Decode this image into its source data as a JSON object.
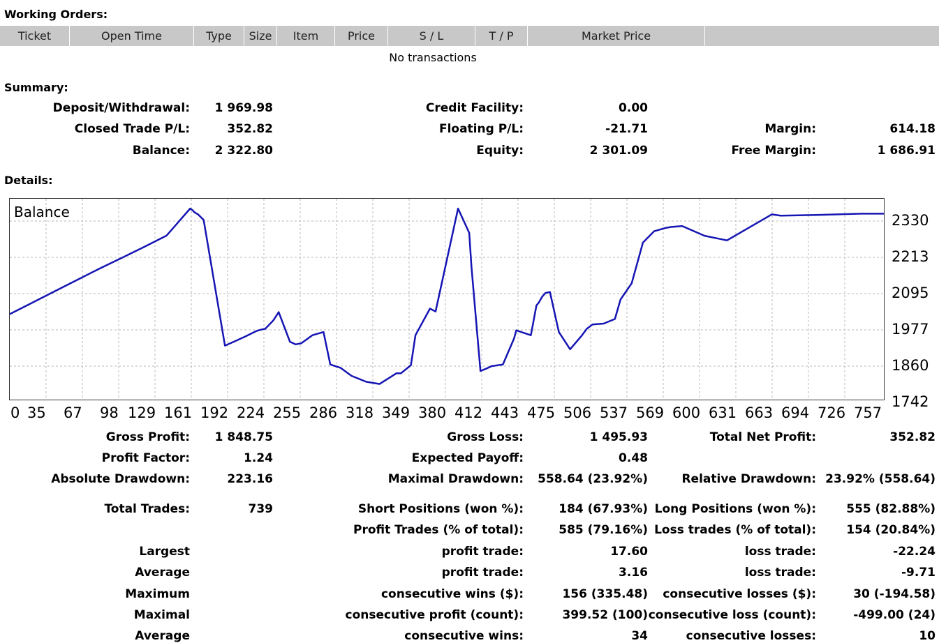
{
  "sections": {
    "working_orders": "Working Orders:",
    "summary": "Summary:",
    "details": "Details:"
  },
  "orders": {
    "columns": [
      "Ticket",
      "Open Time",
      "Type",
      "Size",
      "Item",
      "Price",
      "S / L",
      "T / P",
      "Market Price",
      ""
    ],
    "empty_text": "No transactions"
  },
  "summary": {
    "deposit_label": "Deposit/Withdrawal:",
    "deposit_value": "1 969.98",
    "credit_label": "Credit Facility:",
    "credit_value": "0.00",
    "closed_label": "Closed Trade P/L:",
    "closed_value": "352.82",
    "floating_label": "Floating P/L:",
    "floating_value": "-21.71",
    "margin_label": "Margin:",
    "margin_value": "614.18",
    "balance_label": "Balance:",
    "balance_value": "2 322.80",
    "equity_label": "Equity:",
    "equity_value": "2 301.09",
    "free_margin_label": "Free Margin:",
    "free_margin_value": "1 686.91"
  },
  "details": {
    "rows": [
      [
        "Gross Profit:",
        "1 848.75",
        "Gross Loss:",
        "1 495.93",
        "Total Net Profit:",
        "352.82"
      ],
      [
        "Profit Factor:",
        "1.24",
        "Expected Payoff:",
        "0.48",
        "",
        ""
      ],
      [
        "Absolute Drawdown:",
        "223.16",
        "Maximal Drawdown:",
        "558.64 (23.92%)",
        "Relative Drawdown:",
        "23.92% (558.64)"
      ],
      [
        "Total Trades:",
        "739",
        "Short Positions (won %):",
        "184 (67.93%)",
        "Long Positions (won %):",
        "555 (82.88%)"
      ],
      [
        "",
        "",
        "Profit Trades (% of total):",
        "585 (79.16%)",
        "Loss trades (% of total):",
        "154 (20.84%)"
      ],
      [
        "Largest",
        "",
        "profit trade:",
        "17.60",
        "loss trade:",
        "-22.24"
      ],
      [
        "Average",
        "",
        "profit trade:",
        "3.16",
        "loss trade:",
        "-9.71"
      ],
      [
        "Maximum",
        "",
        "consecutive wins ($):",
        "156 (335.48)",
        "consecutive losses ($):",
        "30 (-194.58)"
      ],
      [
        "Maximal",
        "",
        "consecutive profit (count):",
        "399.52 (100)",
        "consecutive loss (count):",
        "-499.00 (24)"
      ],
      [
        "Average",
        "",
        "consecutive wins:",
        "34",
        "consecutive losses:",
        "10"
      ]
    ]
  },
  "colors": {
    "line": "#1515b4",
    "grid": "#b8b8b8",
    "header_bg": "#c8c8c8"
  },
  "chart_data": {
    "type": "line",
    "title": "Balance",
    "x_ticks": [
      "0",
      "35",
      "67",
      "98",
      "129",
      "161",
      "192",
      "224",
      "255",
      "286",
      "318",
      "349",
      "380",
      "412",
      "443",
      "475",
      "506",
      "537",
      "569",
      "600",
      "631",
      "663",
      "694",
      "726",
      "757"
    ],
    "y_ticks": [
      "2330",
      "2213",
      "2095",
      "1977",
      "1860",
      "1742"
    ],
    "xlim": [
      0,
      780
    ],
    "ylim": [
      1742,
      2360
    ],
    "grid": true,
    "series": [
      {
        "x": [
          0,
          20,
          40,
          60,
          80,
          100,
          120,
          140,
          161,
          163,
          165,
          168,
          170,
          173,
          192,
          200,
          210,
          220,
          224,
          228,
          235,
          240,
          250,
          255,
          260,
          270,
          280,
          286,
          295,
          305,
          318,
          330,
          345,
          349,
          358,
          362,
          375,
          380,
          400,
          410,
          412,
          420,
          425,
          430,
          440,
          450,
          452,
          465,
          470,
          472,
          475,
          478,
          482,
          490,
          500,
          510,
          515,
          520,
          530,
          540,
          545,
          555,
          565,
          575,
          585,
          590,
          600,
          620,
          640,
          680,
          688,
          720,
          760,
          780
        ],
        "y": [
          2005,
          2040,
          2075,
          2110,
          2145,
          2178,
          2212,
          2247,
          2330,
          2325,
          2318,
          2312,
          2305,
          2295,
          1908,
          1920,
          1936,
          1953,
          1957,
          1960,
          1985,
          2011,
          1920,
          1912,
          1915,
          1940,
          1950,
          1850,
          1840,
          1815,
          1797,
          1790,
          1823,
          1823,
          1848,
          1940,
          2022,
          2013,
          2330,
          2255,
          2151,
          1830,
          1837,
          1845,
          1850,
          1930,
          1955,
          1940,
          2032,
          2040,
          2058,
          2070,
          2073,
          1950,
          1897,
          1937,
          1960,
          1973,
          1976,
          1990,
          2050,
          2100,
          2225,
          2260,
          2270,
          2273,
          2276,
          2246,
          2232,
          2312,
          2308,
          2310,
          2314,
          2314
        ]
      }
    ]
  }
}
